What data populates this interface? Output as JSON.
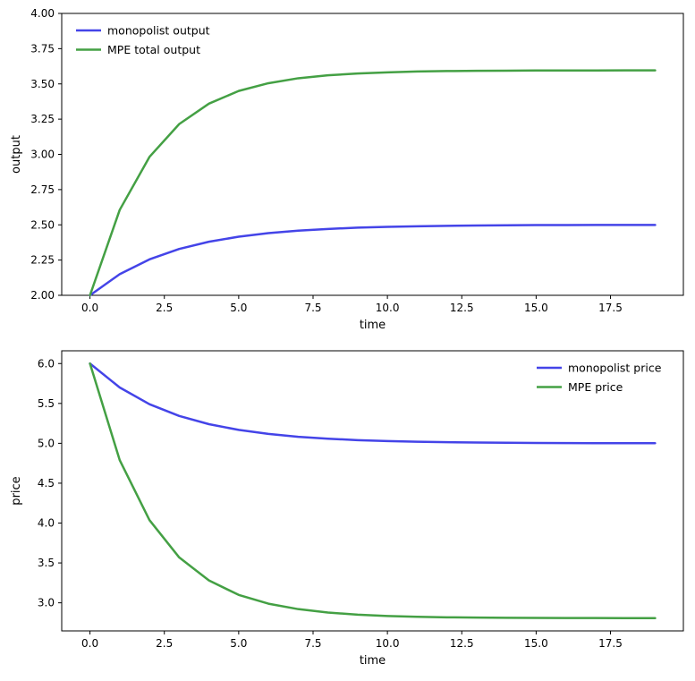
{
  "figure": {
    "background": "#ffffff",
    "axis_color": "#000000"
  },
  "chart_data": [
    {
      "type": "line",
      "title": "",
      "xlabel": "time",
      "ylabel": "output",
      "grid": false,
      "xlim": [
        -0.95,
        19.95
      ],
      "ylim": [
        2.0,
        4.0
      ],
      "xticks": {
        "values": [
          0,
          2.5,
          5,
          7.5,
          10,
          12.5,
          15,
          17.5
        ],
        "labels": [
          "0.0",
          "2.5",
          "5.0",
          "7.5",
          "10.0",
          "12.5",
          "15.0",
          "17.5"
        ]
      },
      "yticks": {
        "values": [
          2.0,
          2.25,
          2.5,
          2.75,
          3.0,
          3.25,
          3.5,
          3.75,
          4.0
        ],
        "labels": [
          "2.00",
          "2.25",
          "2.50",
          "2.75",
          "3.00",
          "3.25",
          "3.50",
          "3.75",
          "4.00"
        ]
      },
      "x": [
        0,
        1,
        2,
        3,
        4,
        5,
        6,
        7,
        8,
        9,
        10,
        11,
        12,
        13,
        14,
        15,
        16,
        17,
        18,
        19
      ],
      "series": [
        {
          "name": "monopolist output",
          "color": "#4444e8",
          "values": [
            2.0,
            2.15,
            2.255,
            2.329,
            2.38,
            2.416,
            2.441,
            2.459,
            2.471,
            2.48,
            2.486,
            2.49,
            2.493,
            2.495,
            2.497,
            2.498,
            2.498,
            2.499,
            2.499,
            2.499
          ]
        },
        {
          "name": "MPE total output",
          "color": "#44a044",
          "values": [
            2.0,
            2.606,
            2.982,
            3.215,
            3.36,
            3.45,
            3.505,
            3.54,
            3.561,
            3.574,
            3.582,
            3.588,
            3.591,
            3.593,
            3.594,
            3.595,
            3.595,
            3.595,
            3.596,
            3.596
          ]
        }
      ],
      "legend": {
        "position": "upper-left",
        "entries": [
          "monopolist output",
          "MPE total output"
        ]
      }
    },
    {
      "type": "line",
      "title": "",
      "xlabel": "time",
      "ylabel": "price",
      "grid": false,
      "xlim": [
        -0.95,
        19.95
      ],
      "ylim": [
        2.648,
        6.16
      ],
      "xticks": {
        "values": [
          0,
          2.5,
          5,
          7.5,
          10,
          12.5,
          15,
          17.5
        ],
        "labels": [
          "0.0",
          "2.5",
          "5.0",
          "7.5",
          "10.0",
          "12.5",
          "15.0",
          "17.5"
        ]
      },
      "yticks": {
        "values": [
          3.0,
          3.5,
          4.0,
          4.5,
          5.0,
          5.5,
          6.0
        ],
        "labels": [
          "3.0",
          "3.5",
          "4.0",
          "4.5",
          "5.0",
          "5.5",
          "6.0"
        ]
      },
      "x": [
        0,
        1,
        2,
        3,
        4,
        5,
        6,
        7,
        8,
        9,
        10,
        11,
        12,
        13,
        14,
        15,
        16,
        17,
        18,
        19
      ],
      "series": [
        {
          "name": "monopolist price",
          "color": "#4444e8",
          "values": [
            6.0,
            5.7,
            5.49,
            5.343,
            5.24,
            5.168,
            5.118,
            5.082,
            5.058,
            5.04,
            5.028,
            5.02,
            5.014,
            5.01,
            5.007,
            5.005,
            5.003,
            5.002,
            5.002,
            5.001
          ]
        },
        {
          "name": "MPE price",
          "color": "#44a044",
          "values": [
            6.0,
            4.789,
            4.037,
            3.569,
            3.28,
            3.099,
            2.989,
            2.921,
            2.878,
            2.851,
            2.835,
            2.825,
            2.818,
            2.815,
            2.812,
            2.81,
            2.809,
            2.809,
            2.808,
            2.808
          ]
        }
      ],
      "legend": {
        "position": "upper-right",
        "entries": [
          "monopolist price",
          "MPE price"
        ]
      }
    }
  ]
}
